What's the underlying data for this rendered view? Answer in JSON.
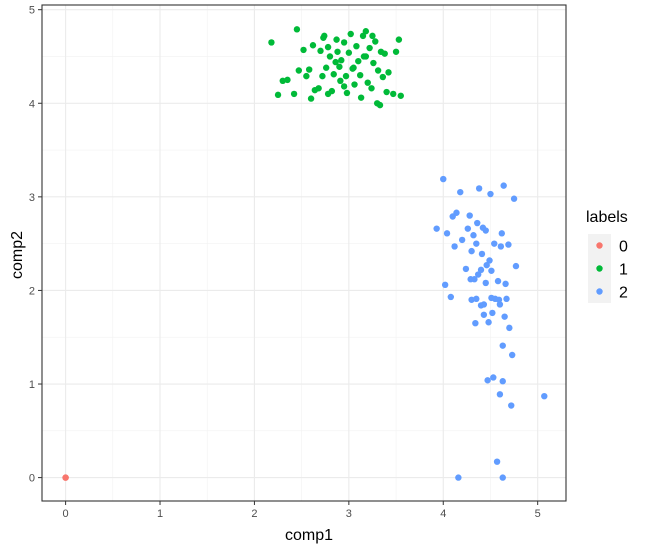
{
  "chart_data": {
    "type": "scatter",
    "xlabel": "comp1",
    "ylabel": "comp2",
    "xlim": [
      -0.25,
      5.3
    ],
    "ylim": [
      -0.25,
      5.05
    ],
    "x_ticks": [
      0,
      1,
      2,
      3,
      4,
      5
    ],
    "y_ticks": [
      0,
      1,
      2,
      3,
      4,
      5
    ],
    "grid": true,
    "legend": {
      "title": "labels",
      "placement": "right"
    },
    "series": [
      {
        "name": "0",
        "color": "#F8766D",
        "points": [
          [
            0.0,
            0.0
          ],
          [
            0.0,
            0.0
          ]
        ]
      },
      {
        "name": "1",
        "color": "#00BA38",
        "points": [
          [
            2.18,
            4.65
          ],
          [
            2.45,
            4.79
          ],
          [
            2.25,
            4.09
          ],
          [
            2.35,
            4.25
          ],
          [
            2.42,
            4.1
          ],
          [
            2.47,
            4.35
          ],
          [
            2.52,
            4.57
          ],
          [
            2.55,
            4.29
          ],
          [
            2.58,
            4.36
          ],
          [
            2.62,
            4.62
          ],
          [
            2.64,
            4.14
          ],
          [
            2.68,
            4.16
          ],
          [
            2.7,
            4.56
          ],
          [
            2.72,
            4.29
          ],
          [
            2.73,
            4.7
          ],
          [
            2.74,
            4.72
          ],
          [
            2.76,
            4.38
          ],
          [
            2.78,
            4.1
          ],
          [
            2.78,
            4.6
          ],
          [
            2.8,
            4.5
          ],
          [
            2.82,
            4.13
          ],
          [
            2.84,
            4.31
          ],
          [
            2.86,
            4.44
          ],
          [
            2.87,
            4.68
          ],
          [
            2.88,
            4.55
          ],
          [
            2.9,
            4.39
          ],
          [
            2.91,
            4.24
          ],
          [
            2.92,
            4.46
          ],
          [
            2.95,
            4.65
          ],
          [
            2.97,
            4.29
          ],
          [
            2.98,
            4.11
          ],
          [
            3.0,
            4.54
          ],
          [
            3.02,
            4.74
          ],
          [
            3.04,
            4.37
          ],
          [
            3.06,
            4.2
          ],
          [
            3.08,
            4.61
          ],
          [
            3.1,
            4.45
          ],
          [
            3.12,
            4.3
          ],
          [
            3.13,
            4.06
          ],
          [
            3.15,
            4.72
          ],
          [
            3.16,
            4.5
          ],
          [
            3.18,
            4.77
          ],
          [
            3.2,
            4.22
          ],
          [
            3.22,
            4.59
          ],
          [
            3.24,
            4.16
          ],
          [
            3.26,
            4.43
          ],
          [
            3.28,
            4.66
          ],
          [
            3.3,
            4.0
          ],
          [
            3.31,
            4.35
          ],
          [
            3.33,
            3.98
          ],
          [
            3.34,
            4.55
          ],
          [
            3.36,
            4.28
          ],
          [
            3.38,
            4.53
          ],
          [
            3.4,
            4.12
          ],
          [
            3.42,
            4.33
          ],
          [
            3.47,
            4.1
          ],
          [
            3.5,
            4.55
          ],
          [
            3.53,
            4.68
          ],
          [
            3.55,
            4.08
          ],
          [
            2.3,
            4.24
          ],
          [
            2.6,
            4.05
          ],
          [
            2.95,
            4.18
          ],
          [
            3.05,
            4.38
          ],
          [
            3.18,
            4.5
          ],
          [
            3.25,
            4.72
          ]
        ]
      },
      {
        "name": "2",
        "color": "#619CFF",
        "points": [
          [
            3.93,
            2.66
          ],
          [
            4.0,
            3.19
          ],
          [
            4.02,
            2.06
          ],
          [
            4.04,
            2.61
          ],
          [
            4.08,
            1.93
          ],
          [
            4.1,
            2.79
          ],
          [
            4.12,
            2.47
          ],
          [
            4.14,
            2.83
          ],
          [
            4.16,
            0.0
          ],
          [
            4.18,
            3.05
          ],
          [
            4.2,
            2.54
          ],
          [
            4.24,
            2.23
          ],
          [
            4.26,
            2.66
          ],
          [
            4.28,
            2.8
          ],
          [
            4.29,
            2.12
          ],
          [
            4.3,
            1.9
          ],
          [
            4.3,
            2.42
          ],
          [
            4.32,
            2.59
          ],
          [
            4.33,
            2.12
          ],
          [
            4.34,
            1.65
          ],
          [
            4.35,
            2.5
          ],
          [
            4.36,
            2.72
          ],
          [
            4.37,
            2.17
          ],
          [
            4.38,
            3.09
          ],
          [
            4.4,
            1.84
          ],
          [
            4.41,
            2.39
          ],
          [
            4.42,
            2.67
          ],
          [
            4.43,
            1.85
          ],
          [
            4.45,
            2.64
          ],
          [
            4.46,
            2.27
          ],
          [
            4.47,
            1.04
          ],
          [
            4.48,
            1.66
          ],
          [
            4.49,
            2.32
          ],
          [
            4.5,
            3.03
          ],
          [
            4.51,
            2.21
          ],
          [
            4.52,
            1.76
          ],
          [
            4.54,
            2.5
          ],
          [
            4.55,
            1.91
          ],
          [
            4.57,
            0.17
          ],
          [
            4.58,
            2.1
          ],
          [
            4.59,
            1.9
          ],
          [
            4.6,
            0.89
          ],
          [
            4.61,
            2.47
          ],
          [
            4.62,
            2.61
          ],
          [
            4.63,
            1.03
          ],
          [
            4.63,
            1.41
          ],
          [
            4.64,
            3.12
          ],
          [
            4.65,
            1.72
          ],
          [
            4.66,
            2.07
          ],
          [
            4.67,
            1.91
          ],
          [
            4.69,
            2.49
          ],
          [
            4.7,
            1.6
          ],
          [
            4.72,
            0.77
          ],
          [
            4.73,
            1.31
          ],
          [
            4.75,
            2.98
          ],
          [
            4.77,
            2.26
          ],
          [
            4.6,
            1.85
          ],
          [
            4.53,
            1.07
          ],
          [
            4.4,
            2.22
          ],
          [
            5.07,
            0.87
          ],
          [
            4.63,
            0.0
          ],
          [
            4.43,
            1.74
          ],
          [
            4.51,
            1.92
          ],
          [
            4.35,
            1.91
          ],
          [
            4.45,
            2.08
          ]
        ]
      }
    ]
  }
}
